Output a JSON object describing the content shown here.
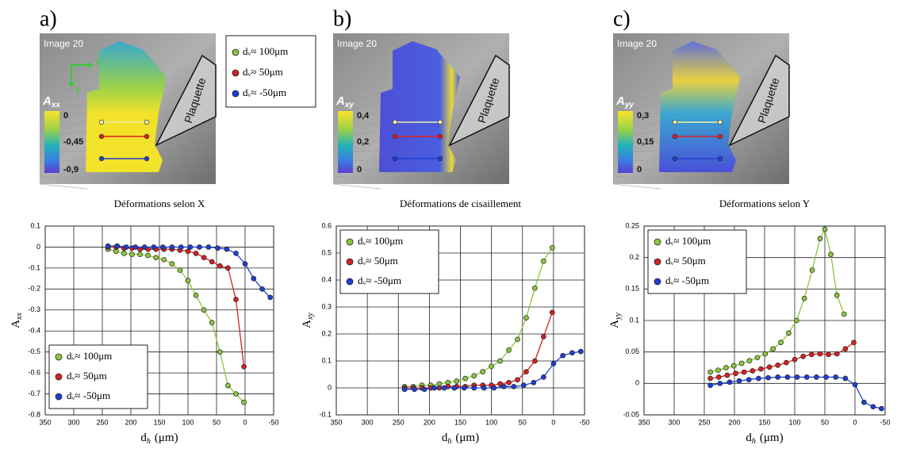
{
  "panels": [
    {
      "letter": "a)",
      "image_title": "Image 20",
      "map_symbol": "A",
      "map_sub": "xx",
      "colorbar_ticks": [
        "0",
        "-0,45",
        "-0,9"
      ],
      "tool_label": "Plaquette",
      "axis_x": "X",
      "axis_y": "Y"
    },
    {
      "letter": "b)",
      "image_title": "Image 20",
      "map_symbol": "A",
      "map_sub": "xy",
      "colorbar_ticks": [
        "0,4",
        "0,2",
        "0"
      ],
      "tool_label": "Plaquette"
    },
    {
      "letter": "c)",
      "image_title": "Image 20",
      "map_symbol": "A",
      "map_sub": "yy",
      "colorbar_ticks": [
        "0,3",
        "0,15",
        "0"
      ],
      "tool_label": "Plaquette"
    }
  ],
  "chart_data": [
    {
      "type": "line",
      "title": "Déformations selon X",
      "xlabel": "d",
      "xlabel_sub": "h",
      "xlabel_unit": "(μm)",
      "ylabel": "A",
      "ylabel_sub": "xx",
      "xlim": [
        350,
        -50
      ],
      "xticks": [
        350,
        300,
        250,
        200,
        150,
        100,
        50,
        0,
        -50
      ],
      "ylim": [
        -0.8,
        0.1
      ],
      "yticks": [
        0.1,
        0,
        -0.1,
        -0.2,
        -0.3,
        -0.4,
        -0.5,
        -0.6,
        -0.7,
        -0.8
      ],
      "grid": true,
      "legend": "lower left",
      "series": [
        {
          "name": "dᵥ≈ 100μm",
          "color": "#8cc63f",
          "x": [
            240,
            226,
            212,
            198,
            184,
            170,
            156,
            142,
            128,
            114,
            100,
            86,
            72,
            58,
            44,
            30,
            16,
            2
          ],
          "values": [
            -0.01,
            -0.02,
            -0.03,
            -0.035,
            -0.035,
            -0.04,
            -0.05,
            -0.06,
            -0.08,
            -0.11,
            -0.16,
            -0.23,
            -0.3,
            -0.36,
            -0.5,
            -0.66,
            -0.7,
            -0.74
          ]
        },
        {
          "name": "dᵥ≈ 50μm",
          "color": "#d42222",
          "x": [
            240,
            226,
            212,
            198,
            184,
            170,
            156,
            142,
            128,
            114,
            100,
            86,
            72,
            58,
            44,
            30,
            16,
            2
          ],
          "values": [
            0,
            0,
            -0.005,
            -0.005,
            -0.01,
            -0.01,
            -0.01,
            -0.01,
            -0.01,
            -0.015,
            -0.02,
            -0.03,
            -0.05,
            -0.07,
            -0.09,
            -0.1,
            -0.25,
            -0.57
          ]
        },
        {
          "name": "dᵥ≈ -50μm",
          "color": "#1f3fd0",
          "x": [
            240,
            224,
            208,
            192,
            176,
            160,
            144,
            128,
            112,
            96,
            80,
            64,
            48,
            32,
            16,
            0,
            -15,
            -30,
            -44
          ],
          "values": [
            0.005,
            0.005,
            0,
            0,
            0,
            0,
            0,
            0,
            0,
            0,
            0,
            0,
            -0.005,
            -0.01,
            -0.03,
            -0.08,
            -0.15,
            -0.2,
            -0.24
          ]
        }
      ]
    },
    {
      "type": "line",
      "title": "Déformations de cisaillement",
      "xlabel": "d",
      "xlabel_sub": "h",
      "xlabel_unit": "(μm)",
      "ylabel": "A",
      "ylabel_sub": "xy",
      "xlim": [
        350,
        -50
      ],
      "xticks": [
        350,
        300,
        250,
        200,
        150,
        100,
        50,
        0,
        -50
      ],
      "ylim": [
        -0.1,
        0.6
      ],
      "yticks": [
        0.6,
        0.5,
        0.4,
        0.3,
        0.2,
        0.1,
        0,
        -0.1
      ],
      "grid": true,
      "legend": "upper left",
      "series": [
        {
          "name": "dᵥ≈ 100μm",
          "color": "#8cc63f",
          "x": [
            240,
            226,
            212,
            198,
            184,
            170,
            156,
            142,
            128,
            114,
            100,
            86,
            72,
            58,
            44,
            30,
            16,
            2
          ],
          "values": [
            0.005,
            0.005,
            0.01,
            0.01,
            0.015,
            0.02,
            0.025,
            0.035,
            0.045,
            0.06,
            0.08,
            0.1,
            0.14,
            0.18,
            0.26,
            0.37,
            0.47,
            0.52
          ]
        },
        {
          "name": "dᵥ≈ 50μm",
          "color": "#d42222",
          "x": [
            240,
            226,
            212,
            198,
            184,
            170,
            156,
            142,
            128,
            114,
            100,
            86,
            72,
            58,
            44,
            30,
            16,
            2
          ],
          "values": [
            0,
            0,
            0,
            0,
            0,
            0.005,
            0.005,
            0.005,
            0.01,
            0.01,
            0.01,
            0.015,
            0.02,
            0.03,
            0.06,
            0.1,
            0.19,
            0.28
          ]
        },
        {
          "name": "dᵥ≈ -50μm",
          "color": "#1f3fd0",
          "x": [
            240,
            224,
            208,
            192,
            176,
            160,
            144,
            128,
            112,
            96,
            80,
            64,
            48,
            32,
            16,
            0,
            -15,
            -30,
            -44
          ],
          "values": [
            -0.005,
            -0.005,
            -0.005,
            0,
            0,
            0,
            0,
            0,
            0,
            0,
            0.005,
            0.005,
            0.01,
            0.02,
            0.04,
            0.09,
            0.12,
            0.13,
            0.135
          ]
        }
      ]
    },
    {
      "type": "line",
      "title": "Déformations selon Y",
      "xlabel": "d",
      "xlabel_sub": "h",
      "xlabel_unit": "(μm)",
      "ylabel": "A",
      "ylabel_sub": "yy",
      "xlim": [
        350,
        -50
      ],
      "xticks": [
        350,
        300,
        250,
        200,
        150,
        100,
        50,
        0,
        -50
      ],
      "ylim": [
        -0.05,
        0.25
      ],
      "yticks": [
        0.25,
        0.2,
        0.15,
        0.1,
        0.05,
        0,
        -0.05
      ],
      "grid": true,
      "legend": "upper left",
      "series": [
        {
          "name": "dᵥ≈ 100μm",
          "color": "#8cc63f",
          "x": [
            240,
            227,
            214,
            201,
            188,
            175,
            162,
            149,
            136,
            123,
            110,
            97,
            84,
            71,
            58,
            50,
            40,
            30,
            18
          ],
          "values": [
            0.018,
            0.021,
            0.025,
            0.028,
            0.032,
            0.036,
            0.041,
            0.047,
            0.055,
            0.065,
            0.08,
            0.1,
            0.135,
            0.18,
            0.23,
            0.245,
            0.205,
            0.14,
            0.11
          ]
        },
        {
          "name": "dᵥ≈ 50μm",
          "color": "#d42222",
          "x": [
            240,
            226,
            212,
            198,
            184,
            170,
            156,
            142,
            128,
            114,
            100,
            86,
            72,
            58,
            44,
            30,
            16,
            2
          ],
          "values": [
            0.008,
            0.01,
            0.013,
            0.016,
            0.018,
            0.02,
            0.023,
            0.026,
            0.029,
            0.033,
            0.038,
            0.043,
            0.046,
            0.047,
            0.046,
            0.047,
            0.055,
            0.065
          ]
        },
        {
          "name": "dᵥ≈ -50μm",
          "color": "#1f3fd0",
          "x": [
            240,
            224,
            208,
            192,
            176,
            160,
            144,
            128,
            112,
            96,
            80,
            64,
            48,
            32,
            16,
            0,
            -15,
            -30,
            -44
          ],
          "values": [
            -0.003,
            0,
            0.002,
            0.004,
            0.006,
            0.008,
            0.009,
            0.01,
            0.01,
            0.01,
            0.01,
            0.01,
            0.01,
            0.01,
            0.008,
            -0.002,
            -0.03,
            -0.037,
            -0.04
          ]
        }
      ]
    }
  ]
}
